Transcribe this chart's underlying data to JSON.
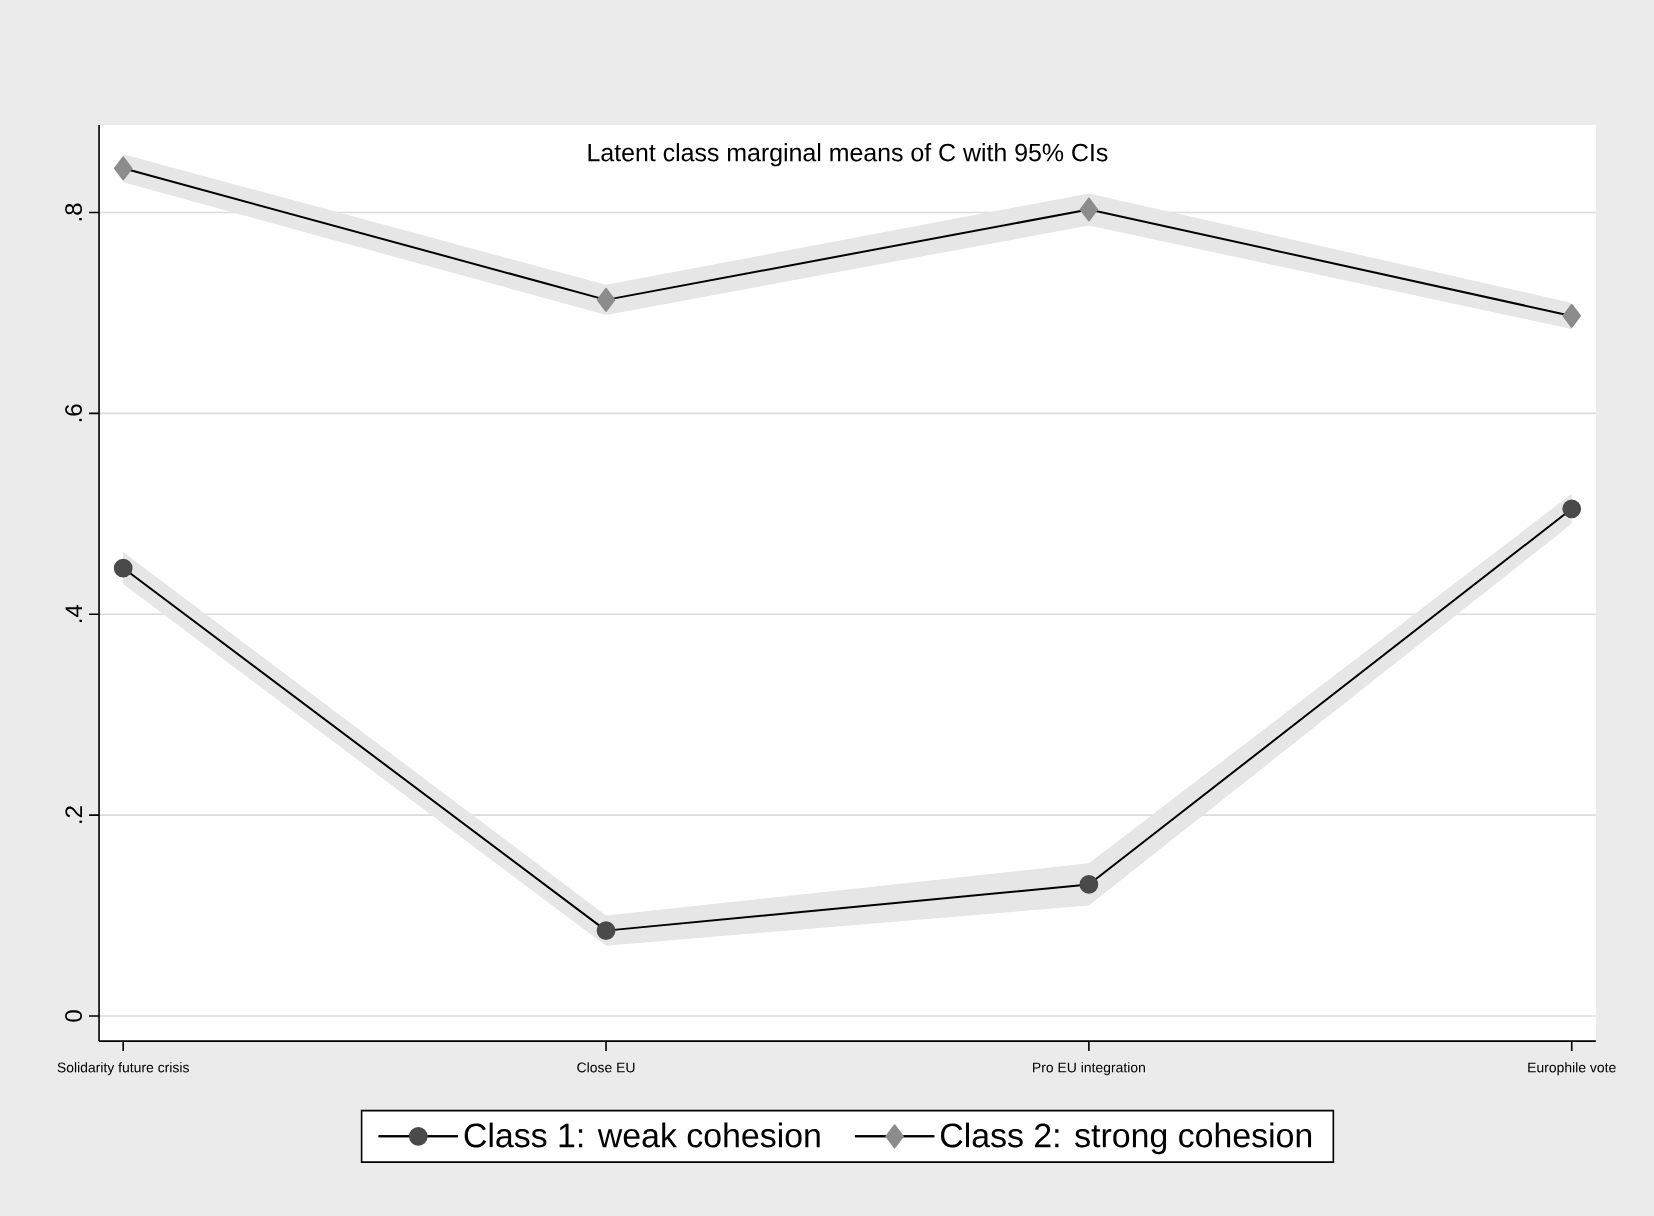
{
  "chart_data": {
    "type": "line",
    "title": "Latent class marginal means of C with 95% CIs",
    "categories": [
      "Solidarity future crisis",
      "Close EU",
      "Pro EU integration",
      "Europhile vote"
    ],
    "series": [
      {
        "name": "Class 1: weak cohesion",
        "color": "#4a4a4a",
        "marker": "circle",
        "values": [
          0.446,
          0.085,
          0.131,
          0.505
        ],
        "lower": [
          0.43,
          0.07,
          0.11,
          0.49
        ],
        "upper": [
          0.462,
          0.1,
          0.152,
          0.52
        ]
      },
      {
        "name": "Class 2: strong cohesion",
        "color": "#8c8c8c",
        "marker": "diamond",
        "values": [
          0.844,
          0.713,
          0.803,
          0.697
        ],
        "lower": [
          0.83,
          0.698,
          0.787,
          0.684
        ],
        "upper": [
          0.858,
          0.728,
          0.819,
          0.71
        ]
      }
    ],
    "ylim": [
      -0.025,
      0.887
    ],
    "yticks": [
      0,
      {
        "value": 0.2,
        "label": ".2"
      },
      {
        "value": 0.4,
        "label": ".4"
      },
      {
        "value": 0.6,
        "label": ".6"
      },
      {
        "value": 0.8,
        "label": ".8"
      }
    ],
    "grid": "y",
    "legend": "bottom",
    "line_style": "solid"
  }
}
